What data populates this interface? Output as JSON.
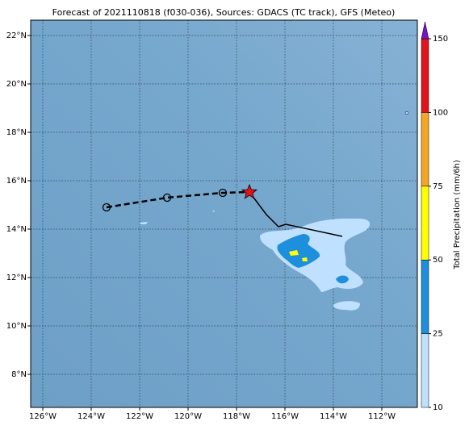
{
  "header": {
    "title": "Forecast of 2021110818 (f030-036), Sources: GDACS (TC track), GFS (Meteo)"
  },
  "map": {
    "lat_labels": [
      "22°N",
      "20°N",
      "18°N",
      "16°N",
      "14°N",
      "12°N",
      "10°N",
      "8°N"
    ],
    "lon_labels": [
      "126°W",
      "124°W",
      "122°W",
      "120°W",
      "118°W",
      "116°W",
      "114°W",
      "112°W"
    ]
  },
  "colorbar": {
    "label": "Total Precipitation (mm/6h)",
    "ticks": [
      10,
      25,
      50,
      75,
      100,
      150
    ],
    "colors": [
      "#bfe0ff",
      "#1e8fdc",
      "#ffff00",
      "#f5a623",
      "#e0141a"
    ],
    "extend_color": "#7a10c8"
  }
}
